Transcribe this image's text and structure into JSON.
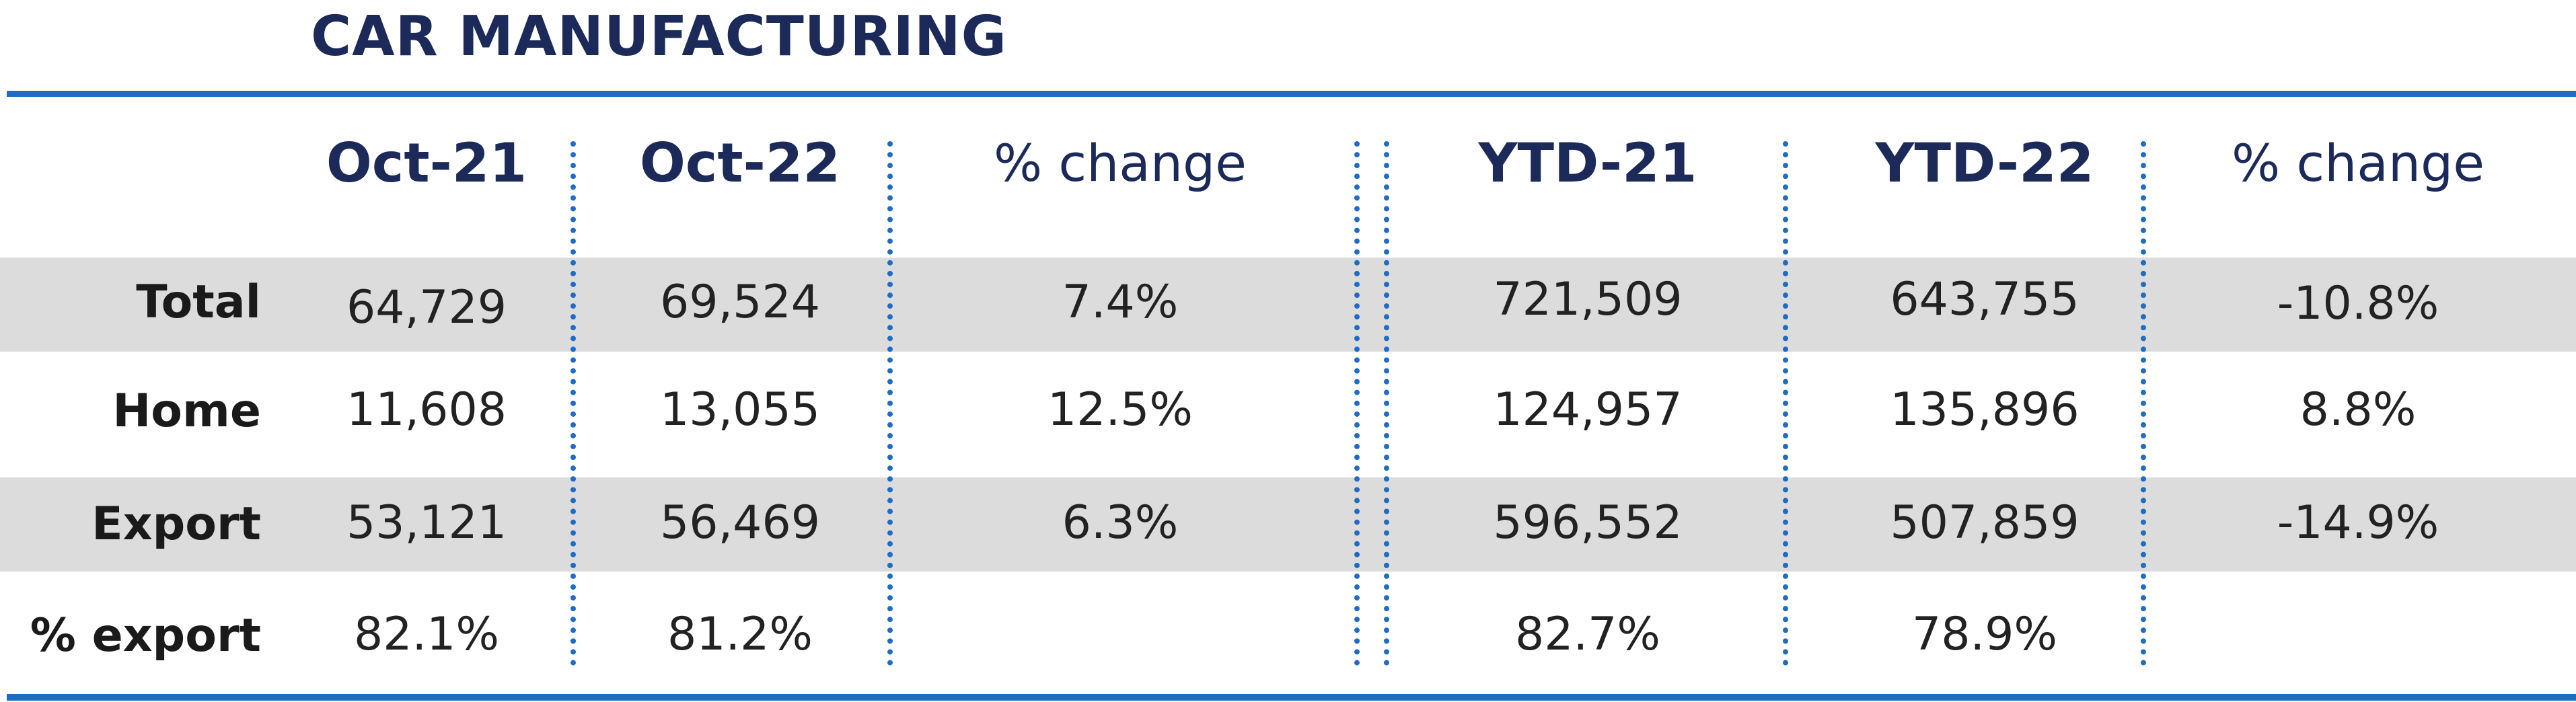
{
  "title": "CAR MANUFACTURING",
  "columns": [
    {
      "label": "Oct-21",
      "style": "bold"
    },
    {
      "label": "Oct-22",
      "style": "bold"
    },
    {
      "label": "% change",
      "style": "light"
    },
    {
      "label": "YTD-21",
      "style": "bold"
    },
    {
      "label": "YTD-22",
      "style": "bold"
    },
    {
      "label": "% change",
      "style": "light"
    }
  ],
  "rows": [
    {
      "label": "Total",
      "values": [
        "64,729",
        "69,524",
        "7.4%",
        "721,509",
        "643,755",
        "-10.8%"
      ],
      "shaded": true
    },
    {
      "label": "Home",
      "values": [
        "11,608",
        "13,055",
        "12.5%",
        "124,957",
        "135,896",
        "8.8%"
      ],
      "shaded": false
    },
    {
      "label": "Export",
      "values": [
        "53,121",
        "56,469",
        "6.3%",
        "596,552",
        "507,859",
        "-14.9%"
      ],
      "shaded": true
    },
    {
      "label": "% export",
      "values": [
        "82.1%",
        "81.2%",
        "",
        "82.7%",
        "78.9%",
        ""
      ],
      "shaded": false
    }
  ],
  "colors": {
    "navy": "#1c2a5a",
    "accent_blue": "#1f6cc4",
    "row_shade": "#dcdcdc"
  }
}
